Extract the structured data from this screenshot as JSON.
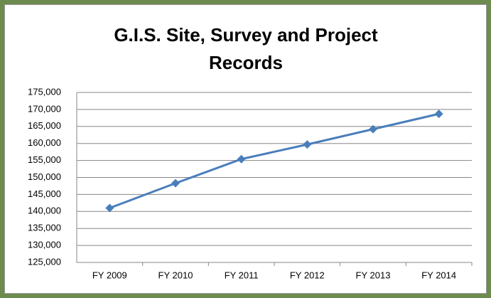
{
  "chart_data": {
    "type": "line",
    "title": "G.I.S. Site, Survey and Project Records",
    "categories": [
      "FY 2009",
      "FY 2010",
      "FY 2011",
      "FY 2012",
      "FY 2013",
      "FY 2014"
    ],
    "series": [
      {
        "name": "Records",
        "color": "#4a7ebb",
        "values": [
          141000,
          148300,
          155400,
          159700,
          164200,
          168700
        ]
      }
    ],
    "ylim": [
      125000,
      175000
    ],
    "yticks": [
      {
        "value": 125000,
        "label": "125,000"
      },
      {
        "value": 130000,
        "label": "130,000"
      },
      {
        "value": 135000,
        "label": "135,000"
      },
      {
        "value": 140000,
        "label": "140,000"
      },
      {
        "value": 145000,
        "label": "145,000"
      },
      {
        "value": 150000,
        "label": "150,000"
      },
      {
        "value": 155000,
        "label": "155,000"
      },
      {
        "value": 160000,
        "label": "160,000"
      },
      {
        "value": 165000,
        "label": "165,000"
      },
      {
        "value": 170000,
        "label": "170,000"
      },
      {
        "value": 175000,
        "label": "175,000"
      }
    ],
    "grid": true
  }
}
